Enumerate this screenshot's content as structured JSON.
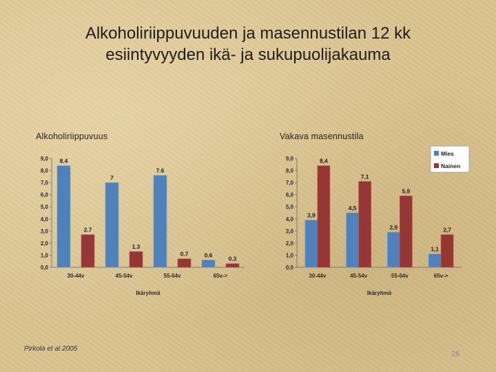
{
  "slide": {
    "title_line1": "Alkoholiriippuvuuden ja masennustilan 12 kk",
    "title_line2": "esiintyvyyden ikä- ja sukupuolijakauma",
    "footer": "Pirkola et al 2005",
    "page_number": "26"
  },
  "colors": {
    "mies": "#4f81bd",
    "nainen": "#953735"
  },
  "chart_data": [
    {
      "type": "bar",
      "title": "Alkoholiriippuvuus",
      "categories": [
        "30-44v",
        "45-54v",
        "55-64v",
        "65v->"
      ],
      "series": [
        {
          "values": [
            8.4,
            7,
            7.6,
            0.6
          ],
          "labels": [
            "8.4",
            "7",
            "7.6",
            "0.6"
          ]
        },
        {
          "values": [
            2.7,
            1.3,
            0.7,
            0.3
          ],
          "labels": [
            "2.7",
            "1.3",
            "0.7",
            "0.3"
          ]
        }
      ],
      "yticks": [
        "0,0",
        "1,0",
        "2,0",
        "3,0",
        "4,0",
        "5,0",
        "6,0",
        "7,0",
        "8,0",
        "9,0"
      ],
      "ylim": [
        0,
        9
      ],
      "xlabel": "Ikäryhmä",
      "ylabel": "",
      "legend": null
    },
    {
      "type": "bar",
      "title": "Vakava masennustila",
      "categories": [
        "30-44v",
        "45-54v",
        "55-64v",
        "65v->"
      ],
      "series": [
        {
          "name": "Mies",
          "values": [
            3.9,
            4.5,
            2.9,
            1.1
          ],
          "labels": [
            "3,9",
            "4,5",
            "2,9",
            "1,1"
          ]
        },
        {
          "name": "Nainen",
          "values": [
            8.4,
            7.1,
            5.9,
            2.7
          ],
          "labels": [
            "8,4",
            "7,1",
            "5,9",
            "2,7"
          ]
        }
      ],
      "yticks": [
        "0,0",
        "1,0",
        "2,0",
        "3,0",
        "4,0",
        "5,0",
        "6,0",
        "7,0",
        "8,0",
        "9,0"
      ],
      "ylim": [
        0,
        9
      ],
      "xlabel": "Ikäryhmä",
      "ylabel": "",
      "legend": "top-right"
    }
  ]
}
